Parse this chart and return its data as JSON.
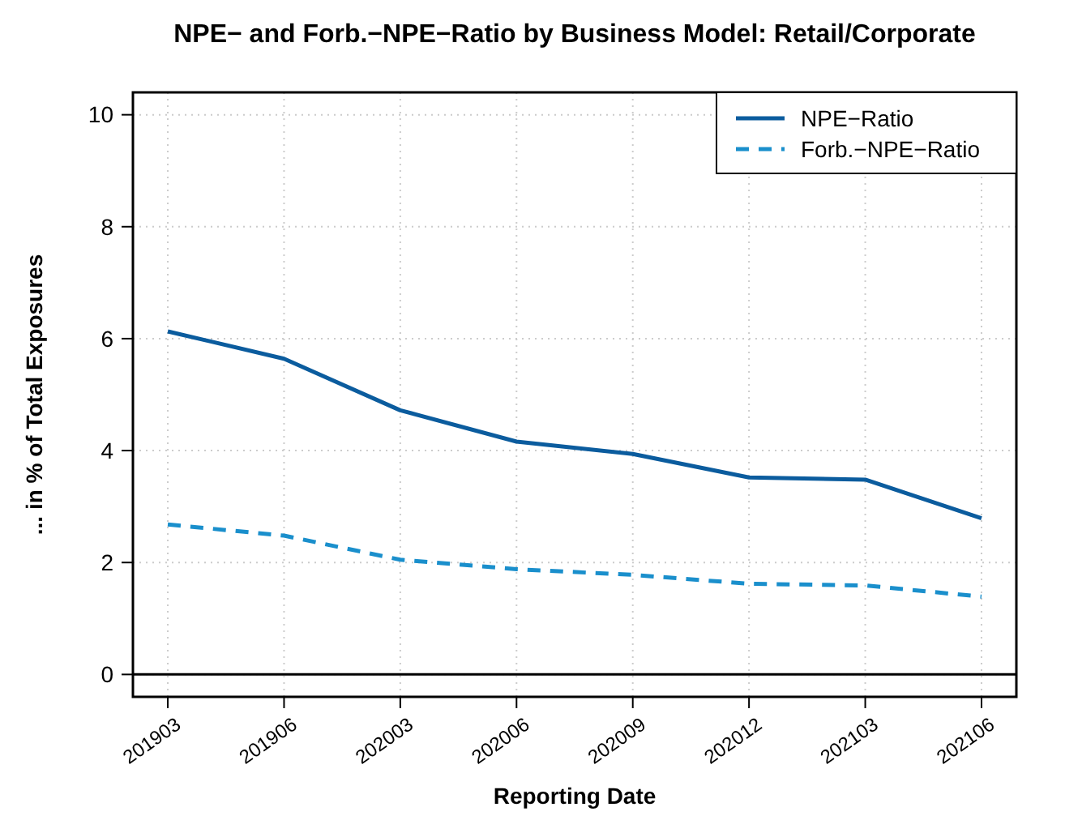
{
  "chart_data": {
    "type": "line",
    "title": "NPE− and Forb.−NPE−Ratio by Business Model: Retail/Corporate",
    "xlabel": "Reporting Date",
    "ylabel": "... in % of Total Exposures",
    "categories": [
      "201903",
      "201906",
      "202003",
      "202006",
      "202009",
      "202012",
      "202103",
      "202106"
    ],
    "series": [
      {
        "name": "NPE−Ratio",
        "color": "#0b5c9e",
        "line_style": "solid",
        "values": [
          6.13,
          5.64,
          4.72,
          4.16,
          3.94,
          3.52,
          3.48,
          2.79
        ]
      },
      {
        "name": "Forb.−NPE−Ratio",
        "color": "#1a8fcc",
        "line_style": "dashed",
        "values": [
          2.68,
          2.48,
          2.05,
          1.88,
          1.78,
          1.62,
          1.59,
          1.39
        ]
      }
    ],
    "ylim": [
      -0.4,
      10.4
    ],
    "yticks": [
      0,
      2,
      4,
      6,
      8,
      10
    ],
    "grid": true,
    "legend": "top right",
    "marker": "none",
    "ref_lines": [
      {
        "axis": "y",
        "value": 0,
        "color": "#000000",
        "line_style": "solid"
      }
    ]
  }
}
